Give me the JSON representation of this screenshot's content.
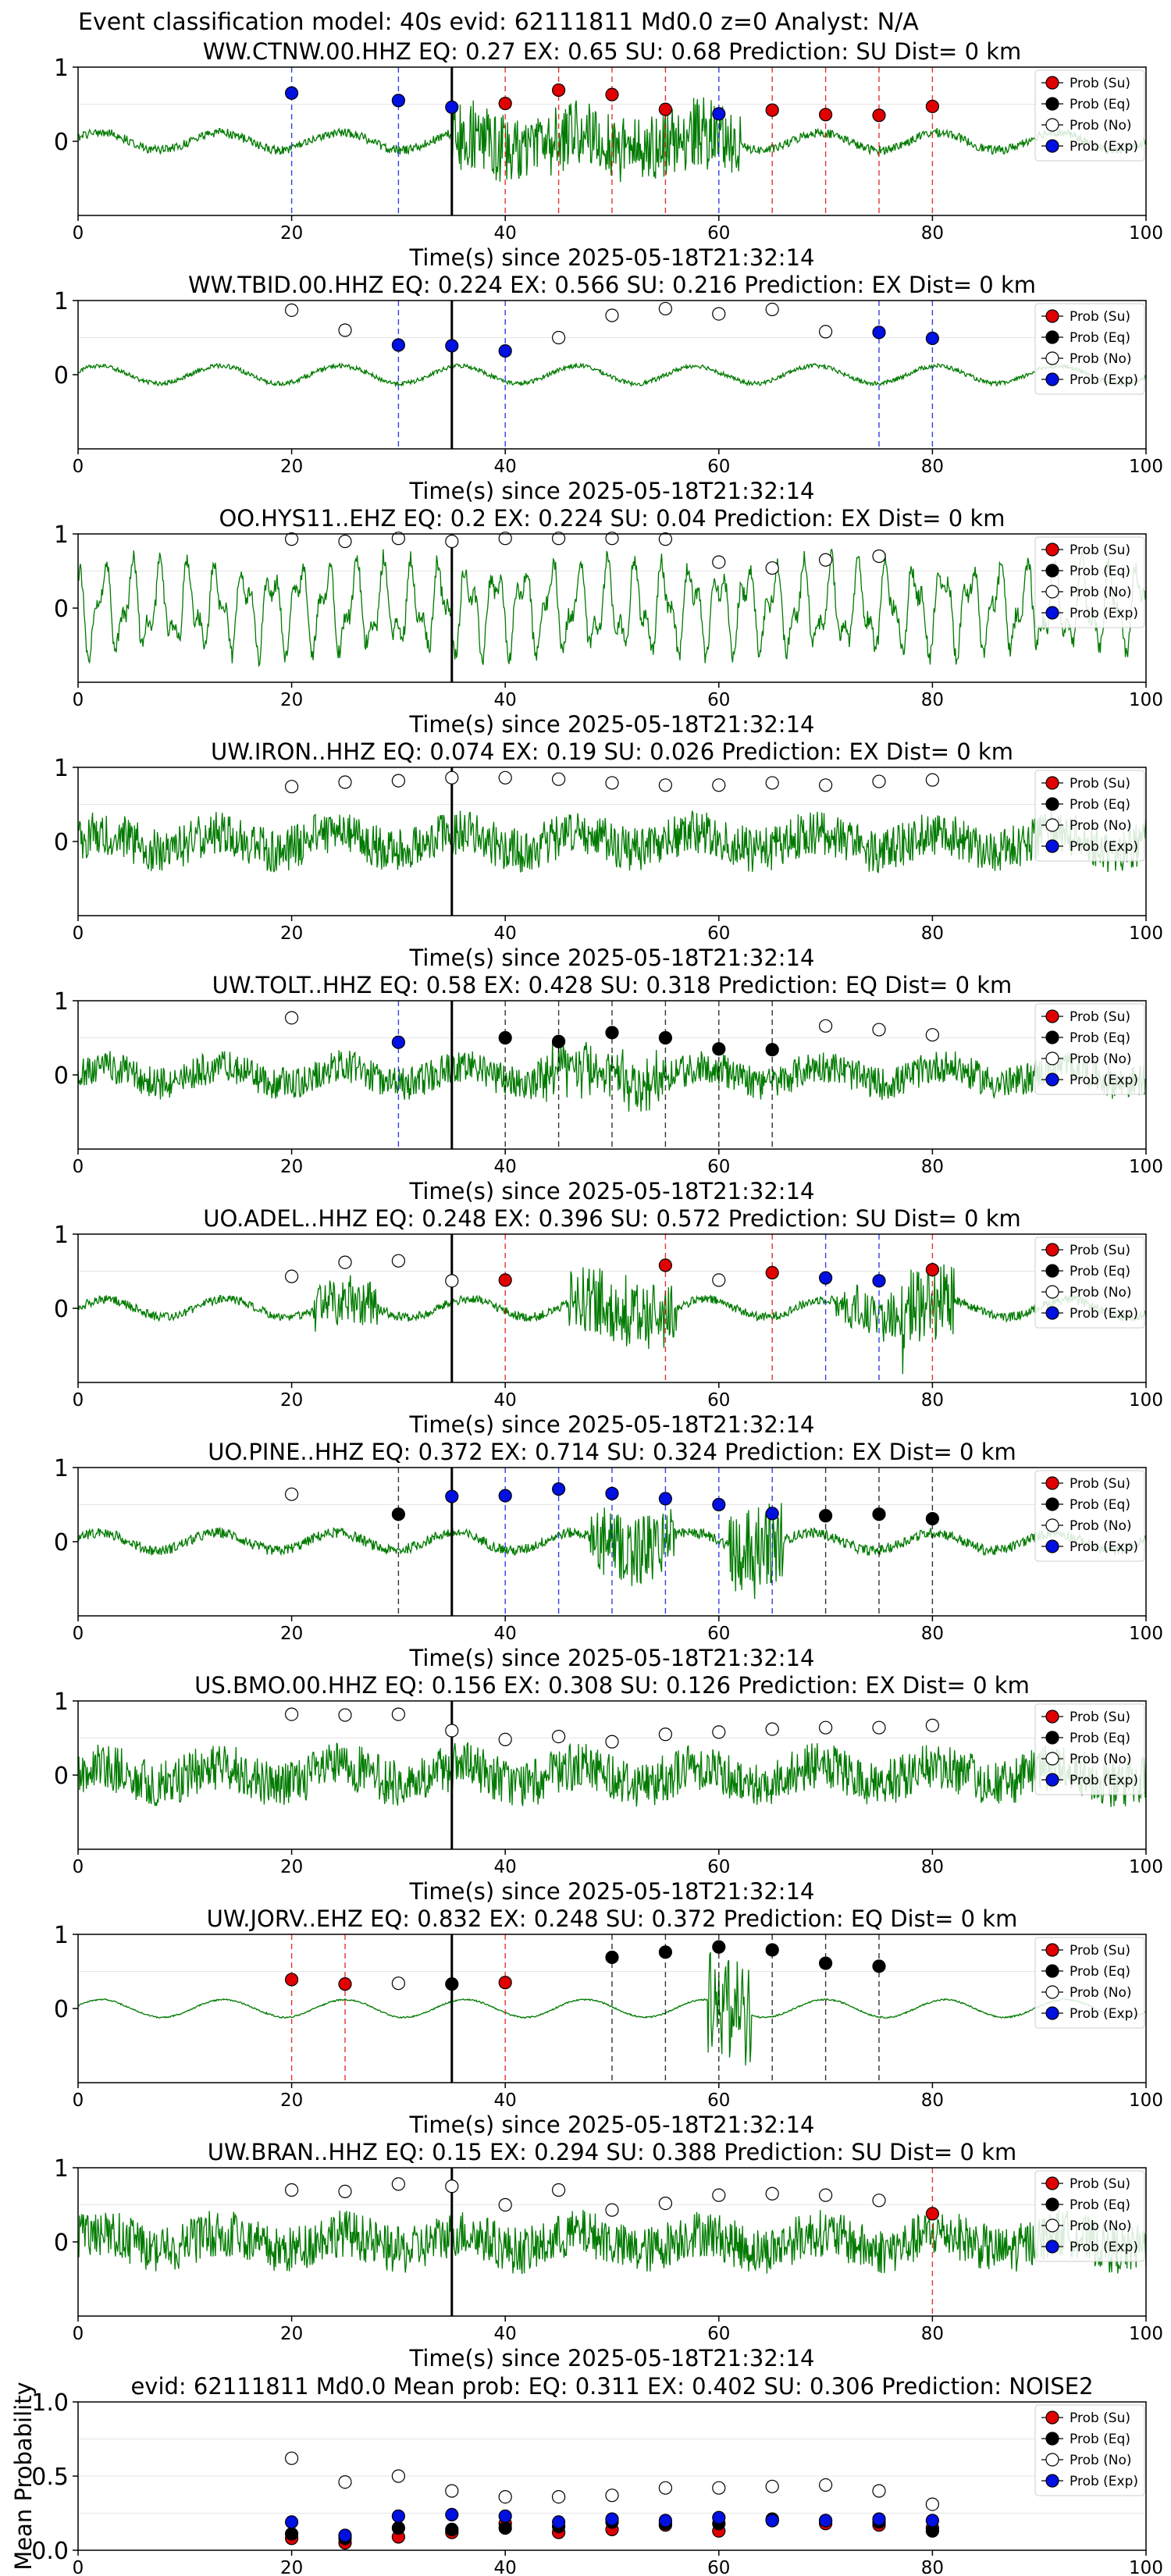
{
  "suptitle": "Event classification model: 40s evid: 62111811 Md0.0 z=0 Analyst: N/A",
  "colors": {
    "su": "#e00000",
    "eq": "#000000",
    "no": "#ffffff",
    "exp": "#0010e0",
    "trace": "#007a00",
    "pick": "#000000"
  },
  "legend_labels": [
    "Prob (Su)",
    "Prob (Eq)",
    "Prob (No)",
    "Prob (Exp)"
  ],
  "x_ticks": [
    "0",
    "20",
    "40",
    "60",
    "80",
    "100"
  ],
  "chart_data": [
    {
      "type": "line",
      "title": "WW.CTNW.00.HHZ   EQ: 0.27  EX: 0.65  SU: 0.68   Prediction: SU    Dist= 0 km",
      "xlabel": "Time(s) since 2025-05-18T21:32:14",
      "xlim": [
        0,
        100
      ],
      "y_ticks": [
        "1",
        "0"
      ],
      "pick": 35,
      "noise": 0.06,
      "burst": [
        [
          35,
          62,
          0.45
        ]
      ],
      "points": [
        [
          20,
          "exp",
          0.65
        ],
        [
          30,
          "exp",
          0.55
        ],
        [
          35,
          "exp",
          0.46
        ],
        [
          40,
          "su",
          0.51
        ],
        [
          45,
          "su",
          0.69
        ],
        [
          50,
          "su",
          0.63
        ],
        [
          55,
          "su",
          0.43
        ],
        [
          60,
          "exp",
          0.37
        ],
        [
          65,
          "su",
          0.42
        ],
        [
          70,
          "su",
          0.36
        ],
        [
          75,
          "su",
          0.35
        ],
        [
          80,
          "su",
          0.47
        ]
      ],
      "legend": "top-right"
    },
    {
      "type": "line",
      "title": "WW.TBID.00.HHZ   EQ: 0.224  EX: 0.566  SU: 0.216   Prediction: EX    Dist= 0 km",
      "xlabel": "Time(s) since 2025-05-18T21:32:14",
      "xlim": [
        0,
        100
      ],
      "y_ticks": [
        "1",
        "0"
      ],
      "pick": 35,
      "noise": 0.03,
      "burst": [],
      "points": [
        [
          20,
          "no",
          0.87
        ],
        [
          25,
          "no",
          0.6
        ],
        [
          30,
          "exp",
          0.4
        ],
        [
          35,
          "exp",
          0.39
        ],
        [
          40,
          "exp",
          0.32
        ],
        [
          45,
          "no",
          0.5
        ],
        [
          50,
          "no",
          0.8
        ],
        [
          55,
          "no",
          0.89
        ],
        [
          60,
          "no",
          0.82
        ],
        [
          65,
          "no",
          0.88
        ],
        [
          70,
          "no",
          0.58
        ],
        [
          75,
          "exp",
          0.57
        ],
        [
          80,
          "exp",
          0.49
        ]
      ],
      "legend": "top-right"
    },
    {
      "type": "line",
      "title": "OO.HYS11..EHZ   EQ: 0.2  EX: 0.224  SU: 0.04   Prediction: EX    Dist= 0 km",
      "xlabel": "Time(s) since 2025-05-18T21:32:14",
      "xlim": [
        0,
        100
      ],
      "y_ticks": [
        "1",
        "0"
      ],
      "pick": 35,
      "noise": 0.0,
      "burst": [],
      "points": [
        [
          20,
          "no",
          0.93
        ],
        [
          25,
          "no",
          0.9
        ],
        [
          30,
          "no",
          0.94
        ],
        [
          35,
          "no",
          0.9
        ],
        [
          40,
          "no",
          0.94
        ],
        [
          45,
          "no",
          0.94
        ],
        [
          50,
          "no",
          0.94
        ],
        [
          55,
          "no",
          0.93
        ],
        [
          60,
          "no",
          0.62
        ],
        [
          65,
          "no",
          0.54
        ],
        [
          70,
          "no",
          0.65
        ],
        [
          75,
          "no",
          0.7
        ]
      ],
      "legend": "top-right"
    },
    {
      "type": "line",
      "title": "UW.IRON..HHZ   EQ: 0.074  EX: 0.19  SU: 0.026   Prediction: EX    Dist= 0 km",
      "xlabel": "Time(s) since 2025-05-18T21:32:14",
      "xlim": [
        0,
        100
      ],
      "y_ticks": [
        "1",
        "0"
      ],
      "pick": 35,
      "noise": 0.3,
      "burst": [],
      "points": [
        [
          20,
          "no",
          0.74
        ],
        [
          25,
          "no",
          0.8
        ],
        [
          30,
          "no",
          0.82
        ],
        [
          35,
          "no",
          0.86
        ],
        [
          40,
          "no",
          0.86
        ],
        [
          45,
          "no",
          0.84
        ],
        [
          50,
          "no",
          0.79
        ],
        [
          55,
          "no",
          0.76
        ],
        [
          60,
          "no",
          0.76
        ],
        [
          65,
          "no",
          0.79
        ],
        [
          70,
          "no",
          0.76
        ],
        [
          75,
          "no",
          0.81
        ],
        [
          80,
          "no",
          0.83
        ]
      ],
      "legend": "top-right"
    },
    {
      "type": "line",
      "title": "UW.TOLT..HHZ   EQ: 0.58  EX: 0.428  SU: 0.318   Prediction: EQ    Dist= 0 km",
      "xlabel": "Time(s) since 2025-05-18T21:32:14",
      "xlim": [
        0,
        100
      ],
      "y_ticks": [
        "1",
        "0"
      ],
      "pick": 35,
      "noise": 0.22,
      "burst": [
        [
          43,
          55,
          0.25
        ]
      ],
      "points": [
        [
          20,
          "no",
          0.77
        ],
        [
          30,
          "exp",
          0.44
        ],
        [
          40,
          "eq",
          0.5
        ],
        [
          45,
          "eq",
          0.45
        ],
        [
          50,
          "eq",
          0.57
        ],
        [
          55,
          "eq",
          0.5
        ],
        [
          60,
          "eq",
          0.35
        ],
        [
          65,
          "eq",
          0.34
        ],
        [
          70,
          "no",
          0.66
        ],
        [
          75,
          "no",
          0.61
        ],
        [
          80,
          "no",
          0.54
        ]
      ],
      "legend": "top-right"
    },
    {
      "type": "line",
      "title": "UO.ADEL..HHZ   EQ: 0.248  EX: 0.396  SU: 0.572   Prediction: SU    Dist= 0 km",
      "xlabel": "Time(s) since 2025-05-18T21:32:14",
      "xlim": [
        0,
        100
      ],
      "y_ticks": [
        "1",
        "0"
      ],
      "pick": 35,
      "noise": 0.06,
      "burst": [
        [
          22,
          28,
          0.3
        ],
        [
          46,
          56,
          0.45
        ],
        [
          71,
          78,
          0.3
        ],
        [
          77,
          82,
          0.55
        ]
      ],
      "points": [
        [
          20,
          "no",
          0.43
        ],
        [
          25,
          "no",
          0.62
        ],
        [
          30,
          "no",
          0.64
        ],
        [
          35,
          "no",
          0.37
        ],
        [
          40,
          "su",
          0.38
        ],
        [
          55,
          "su",
          0.58
        ],
        [
          60,
          "no",
          0.38
        ],
        [
          65,
          "su",
          0.48
        ],
        [
          70,
          "exp",
          0.41
        ],
        [
          75,
          "exp",
          0.37
        ],
        [
          80,
          "su",
          0.52
        ]
      ],
      "legend": "top-right"
    },
    {
      "type": "line",
      "title": "UO.PINE..HHZ   EQ: 0.372  EX: 0.714  SU: 0.324   Prediction: EX    Dist= 0 km",
      "xlabel": "Time(s) since 2025-05-18T21:32:14",
      "xlim": [
        0,
        100
      ],
      "y_ticks": [
        "1",
        "0"
      ],
      "pick": 35,
      "noise": 0.07,
      "burst": [
        [
          48,
          56,
          0.45
        ],
        [
          61,
          66,
          0.6
        ]
      ],
      "points": [
        [
          20,
          "no",
          0.64
        ],
        [
          30,
          "eq",
          0.37
        ],
        [
          35,
          "exp",
          0.61
        ],
        [
          40,
          "exp",
          0.62
        ],
        [
          45,
          "exp",
          0.71
        ],
        [
          50,
          "exp",
          0.65
        ],
        [
          55,
          "exp",
          0.58
        ],
        [
          60,
          "exp",
          0.5
        ],
        [
          65,
          "exp",
          0.38
        ],
        [
          70,
          "eq",
          0.35
        ],
        [
          75,
          "eq",
          0.37
        ],
        [
          80,
          "eq",
          0.31
        ]
      ],
      "legend": "top-right"
    },
    {
      "type": "line",
      "title": "US.BMO.00.HHZ   EQ: 0.156  EX: 0.308  SU: 0.126   Prediction: EX    Dist= 0 km",
      "xlabel": "Time(s) since 2025-05-18T21:32:14",
      "xlim": [
        0,
        100
      ],
      "y_ticks": [
        "1",
        "0"
      ],
      "pick": 35,
      "noise": 0.32,
      "burst": [],
      "points": [
        [
          20,
          "no",
          0.82
        ],
        [
          25,
          "no",
          0.81
        ],
        [
          30,
          "no",
          0.82
        ],
        [
          35,
          "no",
          0.6
        ],
        [
          40,
          "no",
          0.48
        ],
        [
          45,
          "no",
          0.52
        ],
        [
          50,
          "no",
          0.45
        ],
        [
          55,
          "no",
          0.55
        ],
        [
          60,
          "no",
          0.58
        ],
        [
          65,
          "no",
          0.62
        ],
        [
          70,
          "no",
          0.64
        ],
        [
          75,
          "no",
          0.64
        ],
        [
          80,
          "no",
          0.67
        ]
      ],
      "legend": "top-right"
    },
    {
      "type": "line",
      "title": "UW.JORV..EHZ   EQ: 0.832  EX: 0.248  SU: 0.372   Prediction: EQ    Dist= 0 km",
      "xlabel": "Time(s) since 2025-05-18T21:32:14",
      "xlim": [
        0,
        100
      ],
      "y_ticks": [
        "1",
        "0"
      ],
      "pick": 35,
      "noise": 0.01,
      "burst": [
        [
          59,
          63,
          0.75
        ]
      ],
      "points": [
        [
          20,
          "su",
          0.39
        ],
        [
          25,
          "su",
          0.33
        ],
        [
          30,
          "no",
          0.34
        ],
        [
          35,
          "eq",
          0.33
        ],
        [
          40,
          "su",
          0.35
        ],
        [
          50,
          "eq",
          0.69
        ],
        [
          55,
          "eq",
          0.76
        ],
        [
          60,
          "eq",
          0.83
        ],
        [
          65,
          "eq",
          0.79
        ],
        [
          70,
          "eq",
          0.61
        ],
        [
          75,
          "eq",
          0.57
        ]
      ],
      "legend": "top-right"
    },
    {
      "type": "line",
      "title": "UW.BRAN..HHZ   EQ: 0.15  EX: 0.294  SU: 0.388   Prediction: SU    Dist= 0 km",
      "xlabel": "Time(s) since 2025-05-18T21:32:14",
      "xlim": [
        0,
        100
      ],
      "y_ticks": [
        "1",
        "0"
      ],
      "pick": 35,
      "noise": 0.32,
      "burst": [],
      "points": [
        [
          20,
          "no",
          0.7
        ],
        [
          25,
          "no",
          0.68
        ],
        [
          30,
          "no",
          0.78
        ],
        [
          35,
          "no",
          0.75
        ],
        [
          40,
          "no",
          0.5
        ],
        [
          45,
          "no",
          0.7
        ],
        [
          50,
          "no",
          0.43
        ],
        [
          55,
          "no",
          0.52
        ],
        [
          60,
          "no",
          0.63
        ],
        [
          65,
          "no",
          0.65
        ],
        [
          70,
          "no",
          0.63
        ],
        [
          75,
          "no",
          0.56
        ],
        [
          80,
          "su",
          0.38
        ]
      ],
      "legend": "top-right"
    },
    {
      "type": "scatter",
      "title": "evid: 62111811  Md0.0   Mean prob:   EQ: 0.311  EX: 0.402  SU: 0.306   Prediction: NOISE2",
      "ylabel": "Mean Probability",
      "xlim": [
        0,
        100
      ],
      "ylim": [
        0,
        1
      ],
      "y_ticks": [
        "1.0",
        "0.5",
        "0.0"
      ],
      "series": [
        {
          "name": "Prob (Su)",
          "key": "su",
          "x": [
            20,
            25,
            30,
            35,
            40,
            45,
            50,
            55,
            60,
            65,
            70,
            75,
            80
          ],
          "y": [
            0.08,
            0.05,
            0.09,
            0.12,
            0.18,
            0.12,
            0.14,
            0.17,
            0.13,
            0.2,
            0.18,
            0.17,
            0.15
          ]
        },
        {
          "name": "Prob (Eq)",
          "key": "eq",
          "x": [
            20,
            25,
            30,
            35,
            40,
            45,
            50,
            55,
            60,
            65,
            70,
            75,
            80
          ],
          "y": [
            0.11,
            0.08,
            0.15,
            0.14,
            0.15,
            0.16,
            0.19,
            0.18,
            0.18,
            0.21,
            0.2,
            0.19,
            0.13
          ]
        },
        {
          "name": "Prob (No)",
          "key": "no",
          "x": [
            20,
            25,
            30,
            35,
            40,
            45,
            50,
            55,
            60,
            65,
            70,
            75,
            80
          ],
          "y": [
            0.62,
            0.46,
            0.5,
            0.4,
            0.36,
            0.36,
            0.37,
            0.42,
            0.42,
            0.43,
            0.44,
            0.4,
            0.31
          ]
        },
        {
          "name": "Prob (Exp)",
          "key": "exp",
          "x": [
            20,
            25,
            30,
            35,
            40,
            45,
            50,
            55,
            60,
            65,
            70,
            75,
            80
          ],
          "y": [
            0.19,
            0.1,
            0.23,
            0.24,
            0.23,
            0.19,
            0.21,
            0.2,
            0.22,
            0.2,
            0.2,
            0.21,
            0.2
          ]
        }
      ],
      "legend": "top-right"
    }
  ]
}
